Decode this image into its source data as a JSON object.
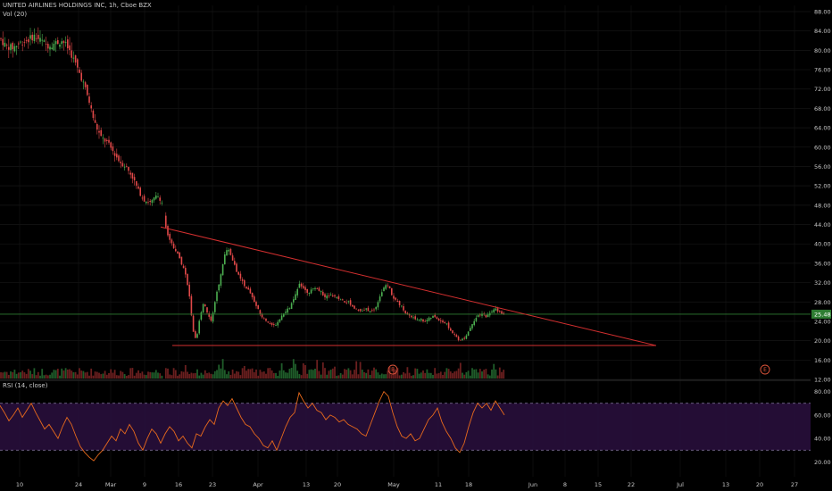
{
  "chart_data": [
    {
      "type": "candlestick",
      "title": "UNITED AIRLINES HOLDINGS INC, 1h, Cboe BZX",
      "volume_label": "Vol (20)",
      "x_ticks": [
        "10",
        "24",
        "Mar",
        "9",
        "16",
        "23",
        "Apr",
        "13",
        "20",
        "May",
        "11",
        "18",
        "Jun",
        "8",
        "15",
        "22",
        "Jul",
        "13",
        "20",
        "27"
      ],
      "y_ticks": [
        "12.00",
        "16.00",
        "20.00",
        "24.00",
        "28.00",
        "32.00",
        "36.00",
        "40.00",
        "44.00",
        "48.00",
        "52.00",
        "56.00",
        "60.00",
        "64.00",
        "68.00",
        "72.00",
        "76.00",
        "80.00",
        "84.00",
        "88.00"
      ],
      "ylim": [
        12,
        88
      ],
      "last_price": "25.48",
      "last_value": 25.48,
      "price_path": [
        [
          0,
          82.5
        ],
        [
          6,
          81
        ],
        [
          14,
          80.5
        ],
        [
          22,
          81.5
        ],
        [
          30,
          82
        ],
        [
          38,
          83
        ],
        [
          46,
          82
        ],
        [
          54,
          81
        ],
        [
          62,
          81.5
        ],
        [
          70,
          82
        ],
        [
          78,
          80
        ],
        [
          85,
          77
        ],
        [
          92,
          74
        ],
        [
          99,
          70
        ],
        [
          106,
          65
        ],
        [
          113,
          62
        ],
        [
          120,
          61
        ],
        [
          127,
          59
        ],
        [
          134,
          57
        ],
        [
          141,
          56
        ],
        [
          148,
          54
        ],
        [
          155,
          51
        ],
        [
          162,
          49
        ],
        [
          169,
          48.5
        ],
        [
          176,
          50
        ],
        [
          181,
          49
        ],
        [
          186,
          43
        ],
        [
          191,
          40.5
        ],
        [
          196,
          39
        ],
        [
          201,
          37
        ],
        [
          206,
          35
        ],
        [
          211,
          31
        ],
        [
          214,
          26
        ],
        [
          217,
          21
        ],
        [
          220,
          20
        ],
        [
          224,
          25
        ],
        [
          228,
          28
        ],
        [
          232,
          26
        ],
        [
          236,
          24
        ],
        [
          240,
          27
        ],
        [
          244,
          31
        ],
        [
          248,
          34
        ],
        [
          252,
          38
        ],
        [
          256,
          39
        ],
        [
          260,
          37
        ],
        [
          264,
          35
        ],
        [
          268,
          33
        ],
        [
          272,
          32
        ],
        [
          276,
          31
        ],
        [
          280,
          30
        ],
        [
          285,
          28
        ],
        [
          290,
          26
        ],
        [
          295,
          24.5
        ],
        [
          300,
          24
        ],
        [
          305,
          23
        ],
        [
          310,
          23.5
        ],
        [
          315,
          25
        ],
        [
          320,
          26
        ],
        [
          325,
          27
        ],
        [
          330,
          29
        ],
        [
          335,
          32
        ],
        [
          340,
          31
        ],
        [
          345,
          30
        ],
        [
          350,
          30.5
        ],
        [
          355,
          31
        ],
        [
          360,
          30
        ],
        [
          365,
          29
        ],
        [
          370,
          29.5
        ],
        [
          375,
          29
        ],
        [
          380,
          28.5
        ],
        [
          385,
          28
        ],
        [
          390,
          28
        ],
        [
          395,
          27
        ],
        [
          400,
          26.5
        ],
        [
          405,
          26
        ],
        [
          410,
          26.5
        ],
        [
          415,
          26
        ],
        [
          420,
          26.5
        ],
        [
          425,
          29
        ],
        [
          430,
          31
        ],
        [
          435,
          31.5
        ],
        [
          440,
          29
        ],
        [
          445,
          28
        ],
        [
          450,
          27
        ],
        [
          455,
          25.5
        ],
        [
          460,
          25
        ],
        [
          465,
          24.5
        ],
        [
          470,
          24.5
        ],
        [
          475,
          24
        ],
        [
          480,
          24.5
        ],
        [
          485,
          25
        ],
        [
          490,
          24.5
        ],
        [
          495,
          24
        ],
        [
          500,
          23.5
        ],
        [
          505,
          22
        ],
        [
          510,
          21
        ],
        [
          515,
          20
        ],
        [
          520,
          20.5
        ],
        [
          525,
          22
        ],
        [
          530,
          24
        ],
        [
          535,
          25
        ],
        [
          540,
          25.5
        ],
        [
          545,
          25
        ],
        [
          550,
          26
        ],
        [
          555,
          26.5
        ],
        [
          560,
          26
        ],
        [
          565,
          25.5
        ]
      ],
      "volume_series": "Vol (20)",
      "trendlines": [
        {
          "name": "upper",
          "points": [
            [
              180,
              43.5
            ],
            [
              735,
              19
            ]
          ]
        },
        {
          "name": "support",
          "points": [
            [
              193,
              19
            ],
            [
              735,
              19
            ]
          ]
        }
      ],
      "markers": [
        "E",
        "E"
      ]
    },
    {
      "type": "line",
      "title": "RSI (14, close)",
      "y_ticks": [
        "80.00",
        "60.00",
        "40.00",
        "20.00"
      ],
      "ylim": [
        15,
        85
      ],
      "upper_band": 70,
      "lower_band": 30,
      "rsi_path": [
        [
          0,
          68
        ],
        [
          5,
          62
        ],
        [
          10,
          55
        ],
        [
          15,
          60
        ],
        [
          20,
          66
        ],
        [
          25,
          58
        ],
        [
          30,
          64
        ],
        [
          35,
          70
        ],
        [
          40,
          62
        ],
        [
          45,
          55
        ],
        [
          50,
          48
        ],
        [
          55,
          52
        ],
        [
          60,
          46
        ],
        [
          65,
          40
        ],
        [
          70,
          50
        ],
        [
          75,
          58
        ],
        [
          80,
          52
        ],
        [
          85,
          42
        ],
        [
          90,
          33
        ],
        [
          95,
          28
        ],
        [
          100,
          24
        ],
        [
          105,
          21
        ],
        [
          110,
          26
        ],
        [
          115,
          30
        ],
        [
          120,
          36
        ],
        [
          125,
          42
        ],
        [
          130,
          38
        ],
        [
          135,
          48
        ],
        [
          140,
          44
        ],
        [
          145,
          52
        ],
        [
          150,
          46
        ],
        [
          155,
          36
        ],
        [
          160,
          30
        ],
        [
          165,
          40
        ],
        [
          170,
          48
        ],
        [
          175,
          44
        ],
        [
          180,
          36
        ],
        [
          185,
          44
        ],
        [
          190,
          50
        ],
        [
          195,
          46
        ],
        [
          200,
          38
        ],
        [
          205,
          42
        ],
        [
          210,
          36
        ],
        [
          215,
          32
        ],
        [
          220,
          44
        ],
        [
          225,
          42
        ],
        [
          230,
          50
        ],
        [
          235,
          56
        ],
        [
          240,
          52
        ],
        [
          245,
          66
        ],
        [
          250,
          72
        ],
        [
          255,
          68
        ],
        [
          260,
          74
        ],
        [
          265,
          66
        ],
        [
          270,
          58
        ],
        [
          275,
          52
        ],
        [
          280,
          50
        ],
        [
          285,
          44
        ],
        [
          290,
          40
        ],
        [
          295,
          34
        ],
        [
          300,
          32
        ],
        [
          305,
          38
        ],
        [
          310,
          30
        ],
        [
          315,
          40
        ],
        [
          320,
          50
        ],
        [
          325,
          58
        ],
        [
          330,
          62
        ],
        [
          335,
          79
        ],
        [
          340,
          72
        ],
        [
          345,
          66
        ],
        [
          350,
          70
        ],
        [
          355,
          64
        ],
        [
          360,
          62
        ],
        [
          365,
          56
        ],
        [
          370,
          60
        ],
        [
          375,
          58
        ],
        [
          380,
          54
        ],
        [
          385,
          56
        ],
        [
          390,
          52
        ],
        [
          395,
          50
        ],
        [
          400,
          48
        ],
        [
          405,
          44
        ],
        [
          410,
          42
        ],
        [
          415,
          52
        ],
        [
          420,
          62
        ],
        [
          425,
          72
        ],
        [
          430,
          80
        ],
        [
          435,
          76
        ],
        [
          440,
          62
        ],
        [
          445,
          50
        ],
        [
          450,
          42
        ],
        [
          455,
          40
        ],
        [
          460,
          44
        ],
        [
          465,
          38
        ],
        [
          470,
          40
        ],
        [
          475,
          48
        ],
        [
          480,
          56
        ],
        [
          485,
          60
        ],
        [
          490,
          66
        ],
        [
          495,
          54
        ],
        [
          500,
          46
        ],
        [
          505,
          40
        ],
        [
          510,
          32
        ],
        [
          515,
          28
        ],
        [
          520,
          36
        ],
        [
          525,
          50
        ],
        [
          530,
          62
        ],
        [
          535,
          70
        ],
        [
          540,
          66
        ],
        [
          545,
          70
        ],
        [
          550,
          64
        ],
        [
          555,
          72
        ],
        [
          560,
          66
        ],
        [
          565,
          60
        ]
      ]
    }
  ]
}
